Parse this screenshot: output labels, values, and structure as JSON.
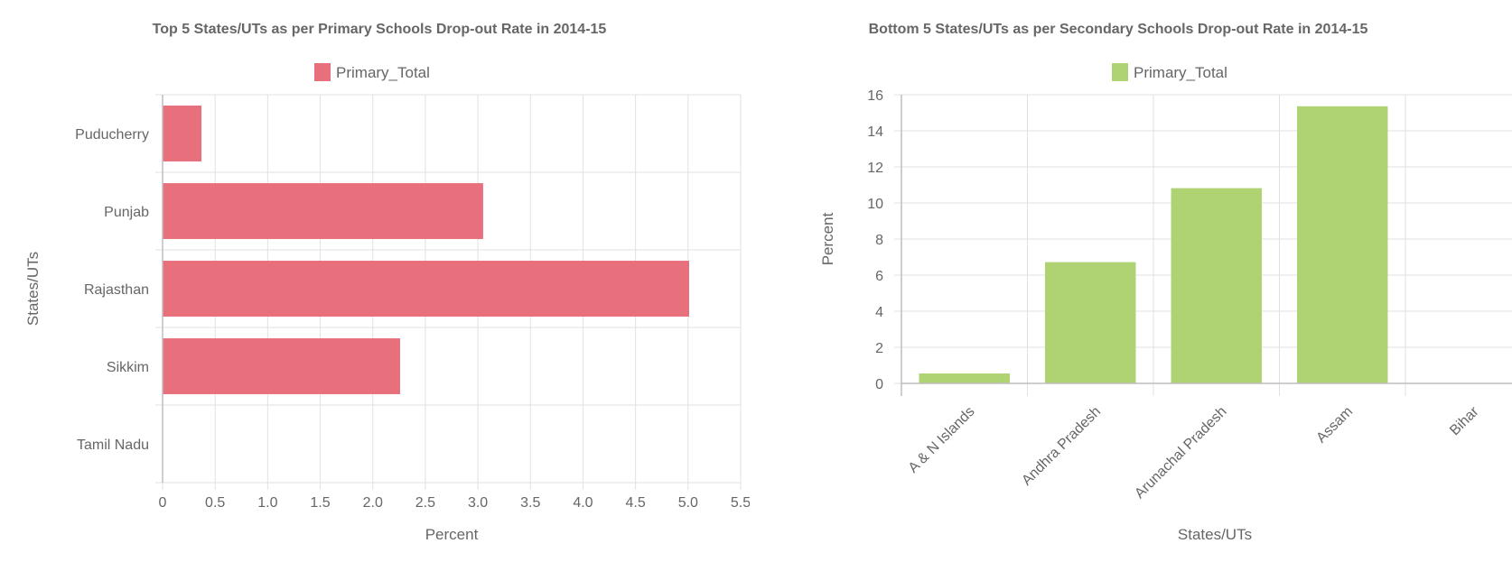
{
  "chart_data": [
    {
      "id": "left",
      "type": "bar",
      "orientation": "horizontal",
      "title": "Top 5 States/UTs as per Primary Schools Drop-out Rate in 2014-15",
      "legend": [
        "Primary_Total"
      ],
      "legend_position": "top",
      "categories": [
        "Puducherry",
        "Punjab",
        "Rajasthan",
        "Sikkim",
        "Tamil Nadu"
      ],
      "series": [
        {
          "name": "Primary_Total",
          "values": [
            0.37,
            3.05,
            5.01,
            2.26,
            0
          ],
          "color": "#e8707c"
        }
      ],
      "xlabel": "Percent",
      "ylabel": "States/UTs",
      "xlim": [
        0,
        5.5
      ],
      "xticks": [
        "0",
        "0.5",
        "1.0",
        "1.5",
        "2.0",
        "2.5",
        "3.0",
        "3.5",
        "4.0",
        "4.5",
        "5.0",
        "5.5"
      ],
      "grid": true
    },
    {
      "id": "right",
      "type": "bar",
      "orientation": "vertical",
      "title": "Bottom 5 States/UTs as per Secondary Schools Drop-out Rate in 2014-15",
      "legend": [
        "Primary_Total"
      ],
      "legend_position": "top",
      "categories": [
        "A & N Islands",
        "Andhra Pradesh",
        "Arunachal Pradesh",
        "Assam",
        "Bihar"
      ],
      "series": [
        {
          "name": "Primary_Total",
          "values": [
            0.55,
            6.72,
            10.82,
            15.36,
            0
          ],
          "color": "#afd273"
        }
      ],
      "xlabel": "States/UTs",
      "ylabel": "Percent",
      "ylim": [
        0,
        16
      ],
      "yticks": [
        "0",
        "2",
        "4",
        "6",
        "8",
        "10",
        "12",
        "14",
        "16"
      ],
      "grid": true
    }
  ]
}
